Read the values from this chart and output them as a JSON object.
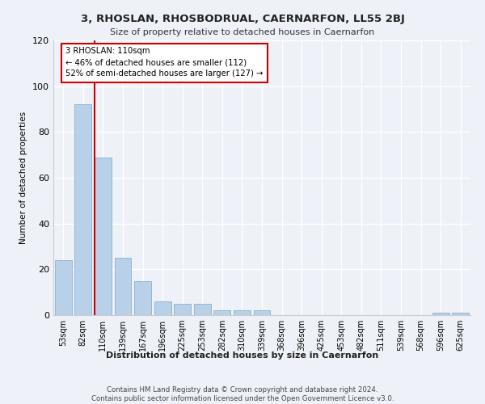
{
  "title": "3, RHOSLAN, RHOSBODRUAL, CAERNARFON, LL55 2BJ",
  "subtitle": "Size of property relative to detached houses in Caernarfon",
  "xlabel": "Distribution of detached houses by size in Caernarfon",
  "ylabel": "Number of detached properties",
  "categories": [
    "53sqm",
    "82sqm",
    "110sqm",
    "139sqm",
    "167sqm",
    "196sqm",
    "225sqm",
    "253sqm",
    "282sqm",
    "310sqm",
    "339sqm",
    "368sqm",
    "396sqm",
    "425sqm",
    "453sqm",
    "482sqm",
    "511sqm",
    "539sqm",
    "568sqm",
    "596sqm",
    "625sqm"
  ],
  "values": [
    24,
    92,
    69,
    25,
    15,
    6,
    5,
    5,
    2,
    2,
    2,
    0,
    0,
    0,
    0,
    0,
    0,
    0,
    0,
    1,
    1
  ],
  "bar_color": "#b8d0e8",
  "bar_edge_color": "#8ab0d0",
  "vline_color": "#cc0000",
  "annotation_text": "3 RHOSLAN: 110sqm\n← 46% of detached houses are smaller (112)\n52% of semi-detached houses are larger (127) →",
  "annotation_box_color": "#ffffff",
  "annotation_box_edge": "#cc0000",
  "ylim": [
    0,
    120
  ],
  "yticks": [
    0,
    20,
    40,
    60,
    80,
    100,
    120
  ],
  "footer": "Contains HM Land Registry data © Crown copyright and database right 2024.\nContains public sector information licensed under the Open Government Licence v3.0.",
  "bg_color": "#eef2f8",
  "plot_bg_color": "#eef2f8"
}
